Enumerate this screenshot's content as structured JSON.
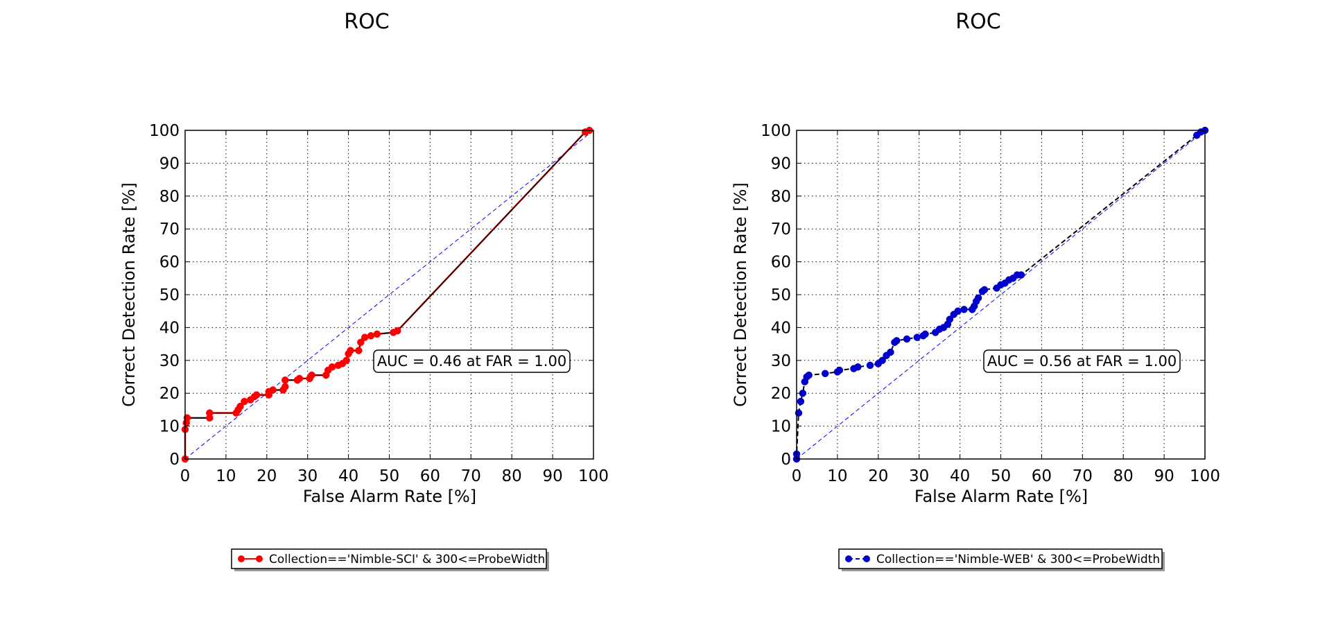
{
  "chart_data": [
    {
      "type": "line",
      "title": "ROC",
      "xlabel": "False Alarm Rate [%]",
      "ylabel": "Correct Detection Rate [%]",
      "xlim": [
        0,
        100
      ],
      "ylim": [
        0,
        100
      ],
      "xticks": [
        "0",
        "10",
        "20",
        "30",
        "40",
        "50",
        "60",
        "70",
        "80",
        "90",
        "100"
      ],
      "yticks": [
        "0",
        "10",
        "20",
        "30",
        "40",
        "50",
        "60",
        "70",
        "80",
        "90",
        "100"
      ],
      "grid": true,
      "legend_position": "below",
      "annotation": "AUC = 0.46 at FAR = 1.00",
      "series": [
        {
          "name": "Collection=='Nimble-SCI' & 300<=ProbeWidth",
          "color": "#ff0000",
          "line_color": "#000000",
          "line_style": "solid",
          "marker": "circle",
          "points": [
            [
              0,
              0
            ],
            [
              0,
              9
            ],
            [
              0.3,
              11
            ],
            [
              0.5,
              12.5
            ],
            [
              6,
              12.5
            ],
            [
              6,
              14
            ],
            [
              12.5,
              14
            ],
            [
              13,
              15
            ],
            [
              13.5,
              16
            ],
            [
              14.5,
              17.5
            ],
            [
              16,
              18
            ],
            [
              17,
              19
            ],
            [
              17.5,
              19.5
            ],
            [
              20.5,
              19.5
            ],
            [
              20.5,
              20.5
            ],
            [
              21.5,
              21
            ],
            [
              24,
              21
            ],
            [
              24.5,
              22
            ],
            [
              24.5,
              24
            ],
            [
              27.5,
              24
            ],
            [
              28,
              24.5
            ],
            [
              30.5,
              24.5
            ],
            [
              31,
              25.5
            ],
            [
              34.5,
              25.5
            ],
            [
              35,
              27
            ],
            [
              36,
              28
            ],
            [
              37.5,
              28.5
            ],
            [
              38.5,
              29
            ],
            [
              39.5,
              30
            ],
            [
              40,
              32
            ],
            [
              40.5,
              33
            ],
            [
              42.5,
              33
            ],
            [
              43,
              35.5
            ],
            [
              44,
              37
            ],
            [
              45.5,
              37.5
            ],
            [
              47,
              38
            ],
            [
              51,
              38.5
            ],
            [
              52,
              39
            ],
            [
              98,
              99.5
            ],
            [
              99,
              100
            ]
          ]
        },
        {
          "name": "",
          "color": "#0000ff",
          "line_style": "dashed",
          "marker": "none",
          "points": [
            [
              0,
              0
            ],
            [
              100,
              100
            ]
          ]
        }
      ]
    },
    {
      "type": "line",
      "title": "ROC",
      "xlabel": "False Alarm Rate [%]",
      "ylabel": "Correct Detection Rate [%]",
      "xlim": [
        0,
        100
      ],
      "ylim": [
        0,
        100
      ],
      "xticks": [
        "0",
        "10",
        "20",
        "30",
        "40",
        "50",
        "60",
        "70",
        "80",
        "90",
        "100"
      ],
      "yticks": [
        "0",
        "10",
        "20",
        "30",
        "40",
        "50",
        "60",
        "70",
        "80",
        "90",
        "100"
      ],
      "grid": true,
      "legend_position": "below",
      "annotation": "AUC = 0.56 at FAR = 1.00",
      "series": [
        {
          "name": "Collection=='Nimble-WEB' & 300<=ProbeWidth",
          "color": "#0000cc",
          "line_color": "#000000",
          "line_style": "dashed",
          "marker": "circle",
          "points": [
            [
              0,
              0
            ],
            [
              0,
              1.5
            ],
            [
              0.5,
              14
            ],
            [
              1,
              17.5
            ],
            [
              1.5,
              20
            ],
            [
              2,
              23.5
            ],
            [
              2.5,
              25
            ],
            [
              3,
              25.5
            ],
            [
              7,
              26
            ],
            [
              10,
              26.5
            ],
            [
              10.5,
              27
            ],
            [
              14,
              27.5
            ],
            [
              15,
              28
            ],
            [
              18,
              28.5
            ],
            [
              20,
              29
            ],
            [
              21,
              30
            ],
            [
              22,
              31.5
            ],
            [
              23,
              32.5
            ],
            [
              24,
              35.5
            ],
            [
              24.5,
              36
            ],
            [
              27,
              36.5
            ],
            [
              29.5,
              37
            ],
            [
              31,
              37.5
            ],
            [
              31.5,
              38
            ],
            [
              34,
              38.5
            ],
            [
              35,
              39.5
            ],
            [
              36,
              40
            ],
            [
              37,
              41
            ],
            [
              37.5,
              42.5
            ],
            [
              38.5,
              44
            ],
            [
              39.5,
              45
            ],
            [
              41,
              45.5
            ],
            [
              43,
              45.5
            ],
            [
              43.5,
              46.5
            ],
            [
              44,
              48
            ],
            [
              44.5,
              49
            ],
            [
              45.5,
              51
            ],
            [
              46,
              51.5
            ],
            [
              49,
              52
            ],
            [
              50,
              53
            ],
            [
              51,
              53.5
            ],
            [
              52,
              54.5
            ],
            [
              53,
              55
            ],
            [
              54,
              56
            ],
            [
              55,
              56
            ],
            [
              98,
              98.5
            ],
            [
              99,
              99.5
            ],
            [
              100,
              100
            ]
          ]
        },
        {
          "name": "",
          "color": "#0000ff",
          "line_style": "dashed",
          "marker": "none",
          "points": [
            [
              0,
              0
            ],
            [
              100,
              100
            ]
          ]
        }
      ]
    }
  ]
}
